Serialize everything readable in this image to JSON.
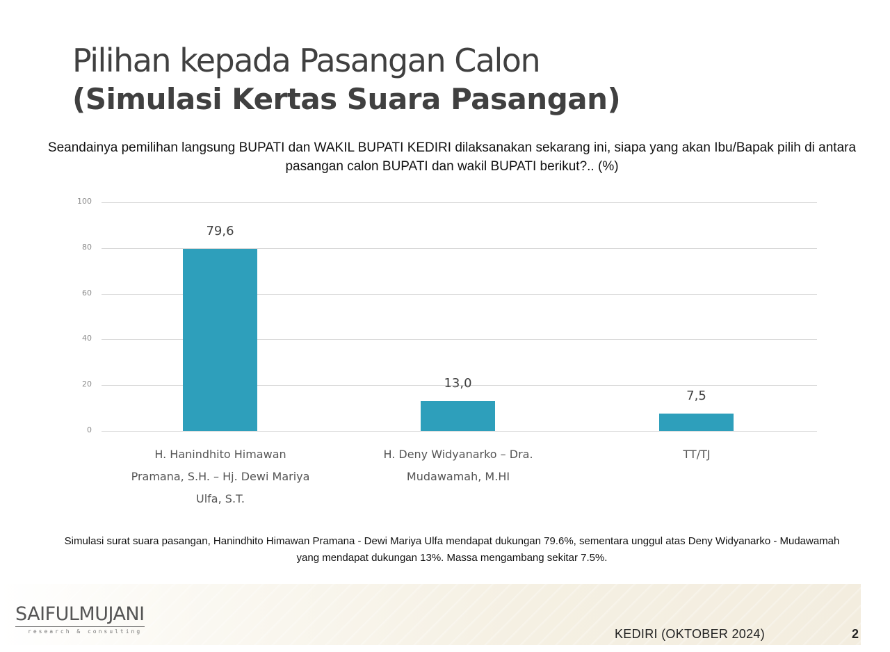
{
  "slide": {
    "title": "Pilihan kepada Pasangan Calon",
    "subtitle": "(Simulasi Kertas Suara Pasangan)",
    "question": "Seandainya pemilihan langsung BUPATI dan WAKIL BUPATI KEDIRI dilaksanakan sekarang ini, siapa yang akan Ibu/Bapak pilih di antara pasangan calon BUPATI dan wakil BUPATI berikut?.. (%)",
    "note": "Simulasi surat suara pasangan, Hanindhito Himawan Pramana - Dewi Mariya Ulfa mendapat dukungan 79.6%, sementara unggul atas Deny Widyanarko -  Mudawamah yang mendapat dukungan 13%. Massa mengambang sekitar 7.5%.",
    "footer": {
      "logo_main": "SAIFULMUJANI",
      "logo_sub": "research & consulting",
      "region": "KEDIRI (OKTOBER 2024)",
      "page_number": "2"
    }
  },
  "chart_data": {
    "type": "bar",
    "title": "Pilihan kepada Pasangan Calon (Simulasi Kertas Suara Pasangan)",
    "xlabel": "",
    "ylabel": "%",
    "ylim": [
      0,
      100
    ],
    "yticks": [
      0,
      20,
      40,
      60,
      80,
      100
    ],
    "grid": true,
    "legend": null,
    "bar_color": "#2e9fbb",
    "categories": [
      "H. Hanindhito Himawan Pramana, S.H. - Hj. Dewi Mariya Ulfa, S.T.",
      "H. Deny Widyanarko - Dra. Mudawamah, M.HI",
      "TT/TJ"
    ],
    "values": [
      79.6,
      13.0,
      7.5
    ],
    "value_labels": [
      "79,6",
      "13,0",
      "7,5"
    ],
    "category_lines": [
      [
        "H. Hanindhito Himawan",
        "Pramana, S.H. – Hj. Dewi Mariya",
        "Ulfa, S.T."
      ],
      [
        "H. Deny Widyanarko – Dra.",
        "Mudawamah, M.HI"
      ],
      [
        "TT/TJ"
      ]
    ]
  }
}
